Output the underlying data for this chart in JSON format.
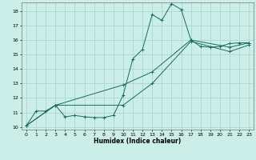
{
  "xlabel": "Humidex (Indice chaleur)",
  "bg_color": "#cceee8",
  "grid_color": "#aad8d0",
  "line_color": "#1a6b5e",
  "xlim": [
    -0.5,
    23.5
  ],
  "ylim": [
    9.8,
    18.6
  ],
  "xticks": [
    0,
    1,
    2,
    3,
    4,
    5,
    6,
    7,
    8,
    9,
    10,
    11,
    12,
    13,
    14,
    15,
    16,
    17,
    18,
    19,
    20,
    21,
    22,
    23
  ],
  "yticks": [
    10,
    11,
    12,
    13,
    14,
    15,
    16,
    17,
    18
  ],
  "line1_x": [
    0,
    1,
    2,
    3,
    4,
    5,
    6,
    7,
    8,
    9,
    10,
    11,
    12,
    13,
    14,
    15,
    16,
    17,
    18,
    19,
    20,
    21,
    22,
    23
  ],
  "line1_y": [
    10.1,
    11.1,
    11.1,
    11.5,
    10.7,
    10.8,
    10.7,
    10.65,
    10.65,
    10.8,
    12.2,
    14.7,
    15.35,
    17.75,
    17.35,
    18.5,
    18.1,
    16.0,
    15.55,
    15.5,
    15.55,
    15.75,
    15.8,
    15.8
  ],
  "line2_x": [
    0,
    3,
    10,
    13,
    17,
    21,
    23
  ],
  "line2_y": [
    10.1,
    11.5,
    12.9,
    13.8,
    16.0,
    15.5,
    15.8
  ],
  "line3_x": [
    0,
    3,
    10,
    13,
    17,
    21,
    23
  ],
  "line3_y": [
    10.1,
    11.5,
    11.5,
    13.0,
    15.9,
    15.2,
    15.65
  ]
}
